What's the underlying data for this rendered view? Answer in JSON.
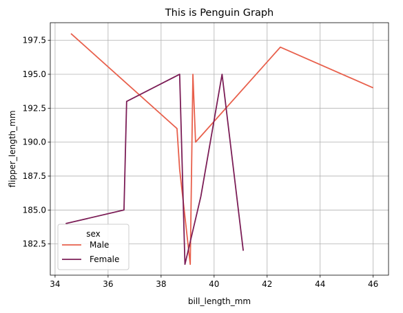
{
  "chart_data": {
    "type": "line",
    "title": "This is Penguin Graph",
    "xlabel": "bill_length_mm",
    "ylabel": "flipper_length_mm",
    "xlim": [
      33.82,
      46.58
    ],
    "ylim": [
      180.2,
      198.8
    ],
    "xticks": [
      34,
      36,
      38,
      40,
      42,
      44,
      46
    ],
    "yticks": [
      182.5,
      185.0,
      187.5,
      190.0,
      192.5,
      195.0,
      197.5
    ],
    "grid": true,
    "legend": {
      "title": "sex",
      "placement": "lower-left"
    },
    "series": [
      {
        "name": "Male",
        "color": "#e8604c",
        "x": [
          34.6,
          38.6,
          38.7,
          39.1,
          39.2,
          39.3,
          42.5,
          46.0
        ],
        "y": [
          198.0,
          191.0,
          188.0,
          181.0,
          195.0,
          190.0,
          197.0,
          194.0
        ]
      },
      {
        "name": "Female",
        "color": "#7b1d56",
        "x": [
          34.4,
          36.6,
          36.7,
          38.7,
          38.9,
          39.5,
          40.3,
          41.1
        ],
        "y": [
          184.0,
          185.0,
          193.0,
          195.0,
          181.0,
          186.0,
          195.0,
          182.0
        ]
      }
    ]
  }
}
